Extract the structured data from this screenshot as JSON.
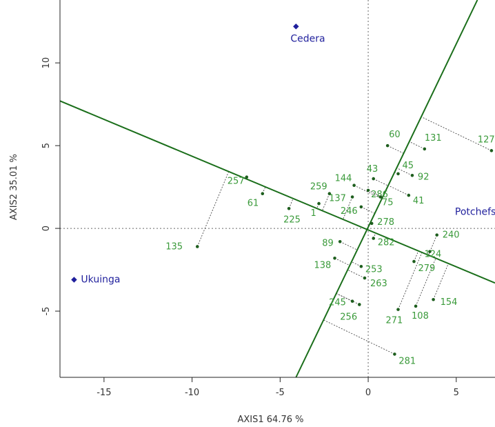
{
  "chart_data": {
    "type": "scatter",
    "title": "",
    "xlabel": "AXIS1 64.76 %",
    "ylabel": "AXIS2 35.01 %",
    "xlim": [
      -17.5,
      7.2
    ],
    "ylim": [
      -9.0,
      13.8
    ],
    "x_ticks": [
      -15,
      -10,
      -5,
      0,
      5
    ],
    "y_ticks": [
      -5,
      0,
      5,
      10
    ],
    "x_tick_labels": [
      "-15",
      "-10",
      "-5",
      "0",
      "5"
    ],
    "y_tick_labels": [
      "-5",
      "0",
      "5",
      "10"
    ],
    "grid": false,
    "reference_lines": {
      "x": 0,
      "y": 0,
      "style": "dotted"
    },
    "environment_vectors": [
      {
        "from": [
          -17.5,
          7.7
        ],
        "to": [
          7.2,
          -3.3
        ]
      },
      {
        "from": [
          -4.1,
          -9.0
        ],
        "to": [
          6.2,
          13.8
        ]
      }
    ],
    "environments": [
      {
        "name": "Cedera",
        "x": -4.1,
        "y": 12.2
      },
      {
        "name": "Ukuinga",
        "x": -16.7,
        "y": -3.1
      },
      {
        "name": "Potchefstroom",
        "x": 6.1,
        "y": 0.4
      }
    ],
    "genotypes": [
      {
        "label": "60",
        "x": 1.1,
        "y": 5.0
      },
      {
        "label": "131",
        "x": 3.2,
        "y": 4.8
      },
      {
        "label": "127",
        "x": 7.0,
        "y": 4.7
      },
      {
        "label": "45",
        "x": 1.7,
        "y": 3.3
      },
      {
        "label": "43",
        "x": 0.3,
        "y": 3.0
      },
      {
        "label": "92",
        "x": 2.5,
        "y": 3.2
      },
      {
        "label": "144",
        "x": -0.8,
        "y": 2.6
      },
      {
        "label": "286",
        "x": 0.0,
        "y": 2.3
      },
      {
        "label": "259",
        "x": -2.2,
        "y": 2.1
      },
      {
        "label": "75",
        "x": 0.7,
        "y": 1.9
      },
      {
        "label": "41",
        "x": 2.3,
        "y": 2.0
      },
      {
        "label": "137",
        "x": -0.9,
        "y": 1.9
      },
      {
        "label": "246",
        "x": -0.4,
        "y": 1.3
      },
      {
        "label": "257",
        "x": -6.9,
        "y": 3.1
      },
      {
        "label": "61",
        "x": -6.0,
        "y": 2.1
      },
      {
        "label": "225",
        "x": -4.5,
        "y": 1.2
      },
      {
        "label": "1",
        "x": -2.8,
        "y": 1.5
      },
      {
        "label": "278",
        "x": 0.2,
        "y": 0.3
      },
      {
        "label": "282",
        "x": 0.3,
        "y": -0.6
      },
      {
        "label": "89",
        "x": -1.6,
        "y": -0.8
      },
      {
        "label": "135",
        "x": -9.7,
        "y": -1.1
      },
      {
        "label": "138",
        "x": -1.9,
        "y": -1.8
      },
      {
        "label": "253",
        "x": -0.4,
        "y": -2.3
      },
      {
        "label": "263",
        "x": -0.2,
        "y": -3.0
      },
      {
        "label": "240",
        "x": 3.9,
        "y": -0.4
      },
      {
        "label": "124",
        "x": 3.5,
        "y": -1.4
      },
      {
        "label": "279",
        "x": 2.6,
        "y": -2.0
      },
      {
        "label": "154",
        "x": 3.7,
        "y": -4.3
      },
      {
        "label": "245",
        "x": -0.9,
        "y": -4.4
      },
      {
        "label": "256",
        "x": -0.5,
        "y": -4.6
      },
      {
        "label": "271",
        "x": 1.7,
        "y": -4.9
      },
      {
        "label": "108",
        "x": 2.7,
        "y": -4.7
      },
      {
        "label": "281",
        "x": 1.5,
        "y": -7.6
      }
    ]
  }
}
